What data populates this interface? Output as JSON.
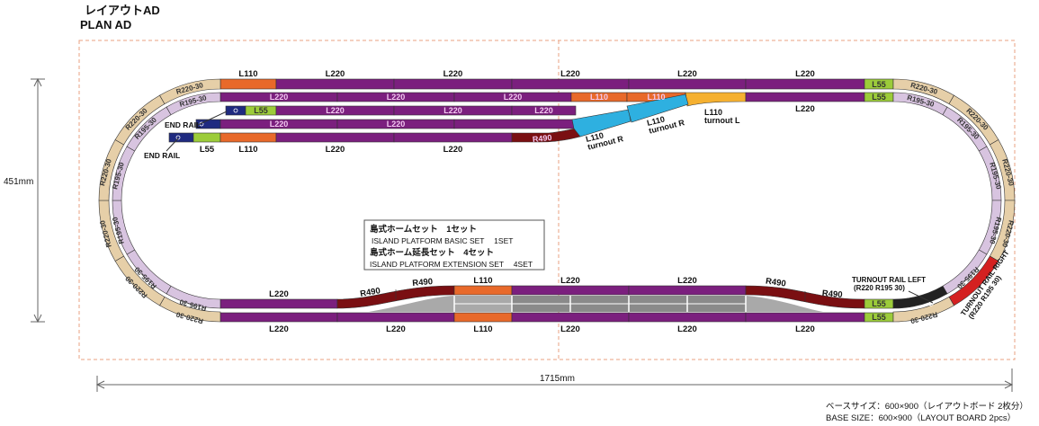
{
  "header": {
    "title_jp": "レイアウトAD",
    "title_en": "PLAN  AD"
  },
  "dimensions": {
    "height": "451mm",
    "width": "1715mm"
  },
  "base_note": {
    "jp": "ベースサイズ：600×900（レイアウトボード 2枚分）",
    "en": "BASE SIZE：600×900（LAYOUT BOARD 2pcs）"
  },
  "platform_box": {
    "line1": "島式ホームセット　1セット",
    "line2": "ISLAND PLATFORM BASIC SET　 1SET",
    "line3": "島式ホーム延長セット　4セット",
    "line4": "ISLAND PLATFORM EXTENSION SET　 4SET"
  },
  "labels": {
    "end_rail": "END RAIL",
    "turnout_l_1": "L110",
    "turnout_l_2": "turnout L",
    "turnout_r_1": "L110",
    "turnout_r_2": "turnout R",
    "turnout_rail_left": "TURNOUT RAIL LEFT",
    "turnout_rail_left_spec": "(R220 R195 30)",
    "turnout_rail_right": "TURNOUT RAIL RIGHT",
    "turnout_rail_right_spec": "(R220 R195 30)"
  },
  "tracks": {
    "top_outer": [
      "L110",
      "L220",
      "L220",
      "L220",
      "L220",
      "L220",
      "L55"
    ],
    "top_inner": [
      "L220",
      "L220",
      "L220",
      "L110",
      "L110",
      "",
      "L220",
      "L55"
    ],
    "siding_1": [
      "",
      "L55",
      "L220",
      "L220",
      "L220"
    ],
    "siding_2": [
      "",
      "L220",
      "L220",
      ""
    ],
    "siding_3": [
      "",
      "L55",
      "L110",
      "L220",
      "L220",
      "R490"
    ],
    "bottom_inner": [
      "L220",
      "R490",
      "R490",
      "L110",
      "L220",
      "L220",
      "R490",
      "R490",
      "L55"
    ],
    "bottom_outer": [
      "L220",
      "L220",
      "L110",
      "L220",
      "L220",
      "L220",
      "L55"
    ],
    "curve_outer": "R220-30",
    "curve_inner": "R195-30"
  },
  "colors": {
    "L220": "#7b1f7e",
    "L110": "#e8692a",
    "L55": "#9ccc3a",
    "R220": "#e6cfa8",
    "R195": "#d8c4e0",
    "end_rail": "#1f2a80",
    "turnout_r": "#2eb0e0",
    "turnout_l": "#f5b030",
    "R490": "#7a0f12",
    "turnout_rail_right": "#d42020",
    "turnout_rail_left": "#222222",
    "platform_light": "#a9a9a9",
    "platform_dark": "#8a8a8a",
    "board_border": "#e8a080"
  }
}
